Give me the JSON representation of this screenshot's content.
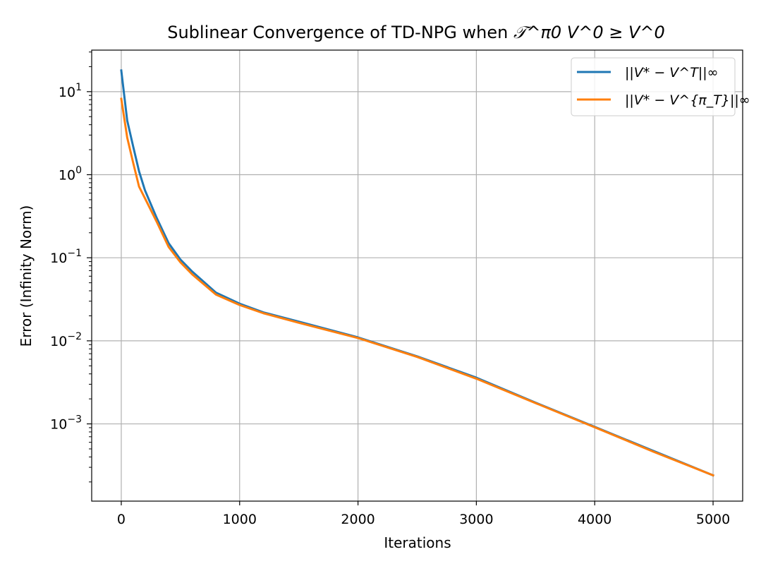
{
  "chart_data": {
    "type": "line",
    "title_text": "Sublinear Convergence of TD-NPG when ",
    "title_math": "𝒯^π0 V^0 ≥ V^0",
    "xlabel": "Iterations",
    "ylabel": "Error (Infinity Norm)",
    "yscale": "log",
    "xlim": [
      -250,
      5250
    ],
    "ylim_log10": [
      -3.93,
      1.5
    ],
    "xticks": [
      0,
      1000,
      2000,
      3000,
      4000,
      5000
    ],
    "xtick_labels": [
      "0",
      "1000",
      "2000",
      "3000",
      "4000",
      "5000"
    ],
    "yticks_exp": [
      -3,
      -2,
      -1,
      0,
      1
    ],
    "ytick_base": "10",
    "ytick_exponents": [
      "−3",
      "−2",
      "−1",
      "0",
      "1"
    ],
    "grid": true,
    "legend_position": "top-right",
    "series": [
      {
        "name": "||V* − V^T||∞",
        "color": "#1f77b4",
        "x": [
          0,
          50,
          100,
          150,
          200,
          300,
          400,
          500,
          600,
          800,
          1000,
          1200,
          1500,
          2000,
          2500,
          3000,
          3500,
          4000,
          4500,
          5000
        ],
        "values": [
          18,
          4.5,
          2.2,
          1.1,
          0.65,
          0.3,
          0.15,
          0.095,
          0.068,
          0.038,
          0.028,
          0.022,
          0.017,
          0.011,
          0.0065,
          0.0036,
          0.0018,
          0.00092,
          0.00047,
          0.00024
        ]
      },
      {
        "name": "||V* − V^{π_T}||∞",
        "color": "#ff7f0e",
        "x": [
          0,
          50,
          100,
          150,
          200,
          300,
          400,
          500,
          600,
          800,
          1000,
          1200,
          1500,
          2000,
          2500,
          3000,
          3500,
          4000,
          4500,
          5000
        ],
        "values": [
          8.2,
          2.8,
          1.4,
          0.72,
          0.52,
          0.27,
          0.135,
          0.088,
          0.063,
          0.036,
          0.027,
          0.0215,
          0.0165,
          0.0108,
          0.0064,
          0.0035,
          0.00178,
          0.00091,
          0.00046,
          0.00024
        ]
      }
    ]
  }
}
